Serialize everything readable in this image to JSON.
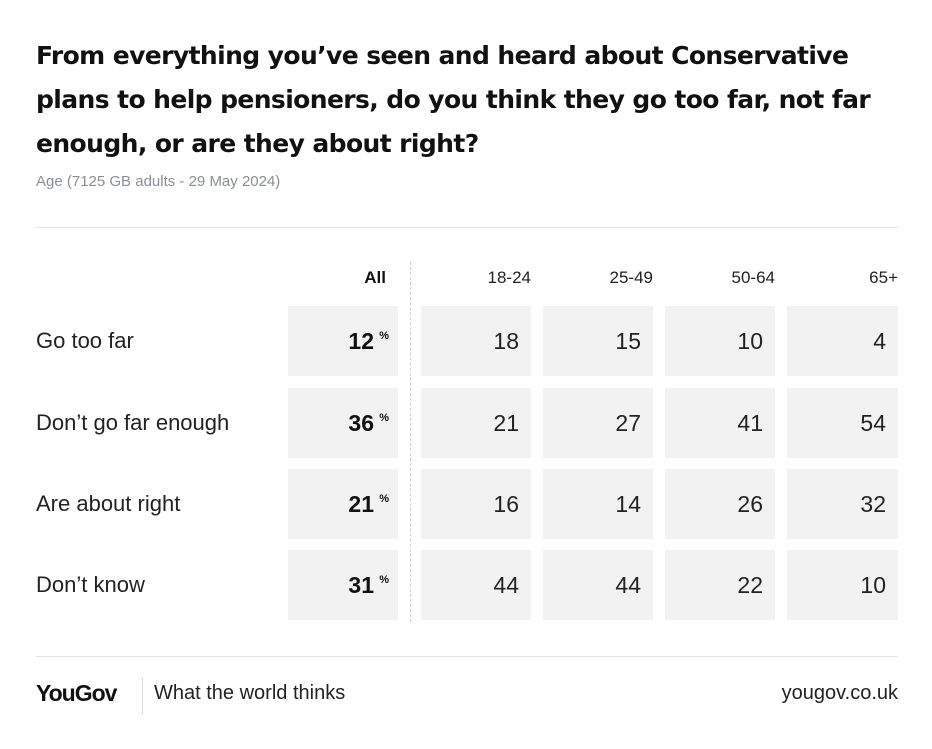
{
  "chart_data": {
    "type": "table",
    "title": "From everything you’ve seen and heard about Conservative plans to help pensioners, do you think they go too far, not far enough, or are they about right?",
    "subtitle": "Age (7125 GB adults - 29 May 2024)",
    "columns": [
      "All",
      "18-24",
      "25-49",
      "50-64",
      "65+"
    ],
    "pct_symbol": "%",
    "rows": [
      {
        "label": "Go too far",
        "values": [
          "12",
          "18",
          "15",
          "10",
          "4"
        ]
      },
      {
        "label": "Don’t go far enough",
        "values": [
          "36",
          "21",
          "27",
          "41",
          "54"
        ]
      },
      {
        "label": "Are about right",
        "values": [
          "21",
          "16",
          "14",
          "26",
          "32"
        ]
      },
      {
        "label": "Don’t know",
        "values": [
          "31",
          "44",
          "44",
          "22",
          "10"
        ]
      }
    ],
    "cell_color": "#f2f2f2"
  },
  "footer": {
    "logo": "YouGov",
    "tagline": "What the world thinks",
    "url": "yougov.co.uk"
  }
}
